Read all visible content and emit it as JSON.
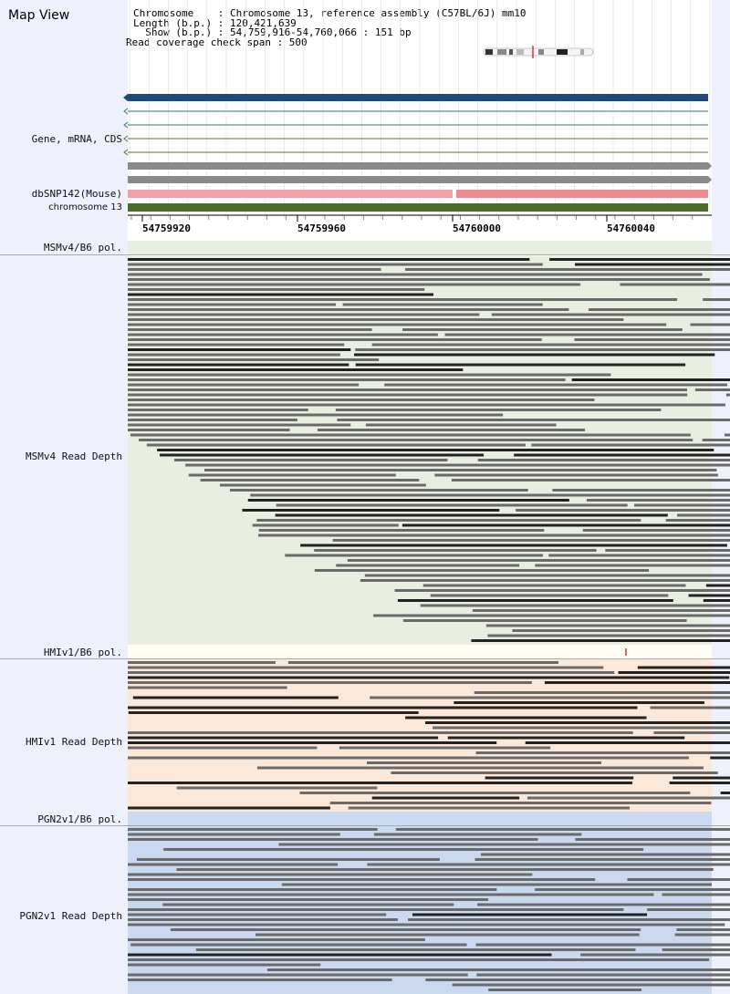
{
  "title": "Map View",
  "header": {
    "chromosome": "Chromosome    : Chromosome 13, reference assembly (C57BL/6J) mm10",
    "length": "Length (b.p.) : 120,421,639",
    "show": "  Show (b.p.) : 54,759,916-54,760,066 : 151 bp",
    "span": "Read coverage check span : 500"
  },
  "tracks": {
    "gene": "Gene, mRNA, CDS",
    "snp": "dbSNP142(Mouse)",
    "chrom": "chromosome 13",
    "msm_pol": "MSMv4/B6 pol.",
    "msm_depth": "MSMv4 Read Depth",
    "hmi_pol": "HMIv1/B6 pol.",
    "hmi_depth": "HMIv1 Read Depth",
    "pgn_pol": "PGN2v1/B6 pol.",
    "pgn_depth": "PGN2v1 Read Depth"
  },
  "axis": {
    "ticks": [
      "54759920",
      "54759960",
      "54760000",
      "54760040"
    ]
  },
  "colors": {
    "gene_blue": "#1f497d",
    "snp_pink": "#f0a0a8",
    "chrom_green": "#4a6b25",
    "msm_bg": "#e9efe0",
    "hmi_bg": "#fbe8d8",
    "pgn_bg": "#cad9ef",
    "read": "#6a6a6a",
    "read_dark": "#222222"
  }
}
